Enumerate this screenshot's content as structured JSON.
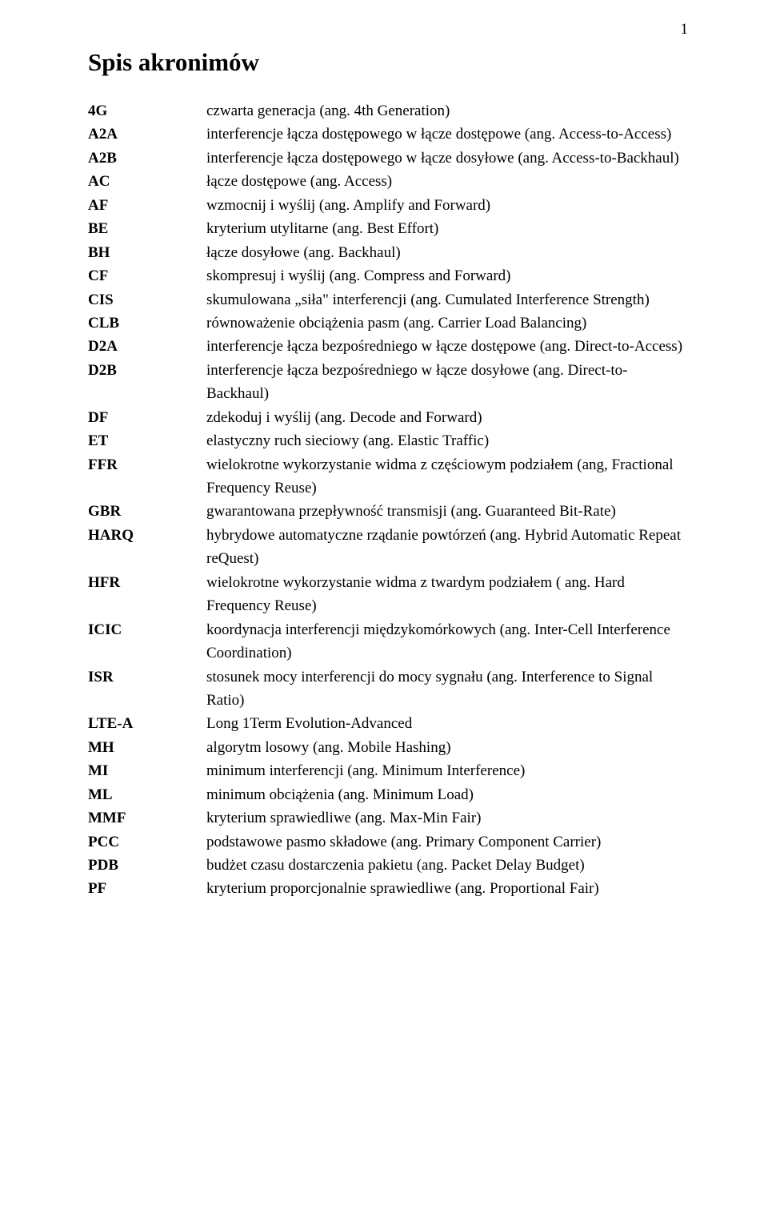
{
  "page_number": "1",
  "title": "Spis akronimów",
  "entries": [
    {
      "acronym": "4G",
      "definition": "czwarta generacja (ang. 4th Generation)"
    },
    {
      "acronym": "A2A",
      "definition": "interferencje łącza dostępowego w łącze dostępowe (ang. Access-to-Access)"
    },
    {
      "acronym": "A2B",
      "definition": "interferencje łącza dostępowego w łącze dosyłowe (ang. Access-to-Backhaul)"
    },
    {
      "acronym": "AC",
      "definition": "łącze dostępowe (ang. Access)"
    },
    {
      "acronym": "AF",
      "definition": "wzmocnij i wyślij (ang. Amplify and Forward)"
    },
    {
      "acronym": "BE",
      "definition": "kryterium utylitarne (ang. Best Effort)"
    },
    {
      "acronym": "BH",
      "definition": "łącze dosyłowe (ang. Backhaul)"
    },
    {
      "acronym": "CF",
      "definition": "skompresuj i wyślij (ang. Compress and Forward)"
    },
    {
      "acronym": "CIS",
      "definition": "skumulowana „siła\" interferencji (ang. Cumulated Interference Strength)"
    },
    {
      "acronym": "CLB",
      "definition": "równoważenie obciążenia pasm (ang. Carrier Load Balancing)"
    },
    {
      "acronym": "D2A",
      "definition": "interferencje łącza bezpośredniego w łącze dostępowe (ang. Direct-to-Access)"
    },
    {
      "acronym": "D2B",
      "definition": "interferencje łącza bezpośredniego w łącze dosyłowe (ang. Direct-to-Backhaul)"
    },
    {
      "acronym": "DF",
      "definition": "zdekoduj i wyślij (ang. Decode and Forward)"
    },
    {
      "acronym": "ET",
      "definition": "elastyczny ruch sieciowy (ang. Elastic Traffic)"
    },
    {
      "acronym": "FFR",
      "definition": "wielokrotne wykorzystanie widma z częściowym podziałem (ang, Fractional Frequency Reuse)"
    },
    {
      "acronym": "GBR",
      "definition": "gwarantowana przepływność transmisji (ang. Guaranteed Bit-Rate)"
    },
    {
      "acronym": "HARQ",
      "definition": "hybrydowe automatyczne rządanie powtórzeń (ang. Hybrid Automatic Repeat reQuest)"
    },
    {
      "acronym": "HFR",
      "definition": "wielokrotne wykorzystanie widma z twardym podziałem ( ang. Hard Frequency Reuse)"
    },
    {
      "acronym": "ICIC",
      "definition": "koordynacja interferencji międzykomórkowych (ang. Inter-Cell Interference Coordination)"
    },
    {
      "acronym": "ISR",
      "definition": "stosunek mocy interferencji do mocy sygnału (ang. Interference to Signal Ratio)"
    },
    {
      "acronym": "LTE-A",
      "definition": "Long 1Term Evolution-Advanced"
    },
    {
      "acronym": "MH",
      "definition": "algorytm losowy (ang. Mobile Hashing)"
    },
    {
      "acronym": "MI",
      "definition": "minimum interferencji (ang. Minimum Interference)"
    },
    {
      "acronym": "ML",
      "definition": "minimum obciążenia (ang. Minimum Load)"
    },
    {
      "acronym": "MMF",
      "definition": "kryterium sprawiedliwe (ang. Max-Min Fair)"
    },
    {
      "acronym": "PCC",
      "definition": "podstawowe pasmo składowe (ang. Primary Component Carrier)"
    },
    {
      "acronym": "PDB",
      "definition": "budżet czasu dostarczenia pakietu (ang. Packet Delay Budget)"
    },
    {
      "acronym": "PF",
      "definition": "kryterium proporcjonalnie sprawiedliwe (ang. Proportional Fair)"
    }
  ]
}
